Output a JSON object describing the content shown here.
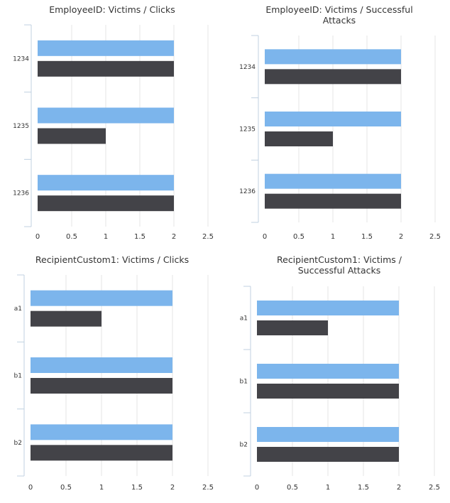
{
  "chart_data": [
    {
      "type": "bar",
      "orientation": "horizontal",
      "title": [
        "EmployeeID: Victims / Clicks"
      ],
      "categories": [
        "1234",
        "1235",
        "1236"
      ],
      "series": [
        {
          "values": [
            2,
            2,
            2
          ],
          "color": "#7cb5ec"
        },
        {
          "values": [
            2,
            1,
            2
          ],
          "color": "#434348"
        }
      ],
      "xlim": [
        0,
        2.5
      ],
      "xticks": [
        "0",
        "0.5",
        "1",
        "1.5",
        "2",
        "2.5"
      ],
      "grid": true
    },
    {
      "type": "bar",
      "orientation": "horizontal",
      "title": [
        "EmployeeID: Victims / Successful",
        "Attacks"
      ],
      "categories": [
        "1234",
        "1235",
        "1236"
      ],
      "series": [
        {
          "values": [
            2,
            2,
            2
          ],
          "color": "#7cb5ec"
        },
        {
          "values": [
            2,
            1,
            2
          ],
          "color": "#434348"
        }
      ],
      "xlim": [
        0,
        2.5
      ],
      "xticks": [
        "0",
        "0.5",
        "1",
        "1.5",
        "2",
        "2.5"
      ],
      "grid": true
    },
    {
      "type": "bar",
      "orientation": "horizontal",
      "title": [
        "RecipientCustom1: Victims / Clicks"
      ],
      "categories": [
        "a1",
        "b1",
        "b2"
      ],
      "series": [
        {
          "values": [
            2,
            2,
            2
          ],
          "color": "#7cb5ec"
        },
        {
          "values": [
            1,
            2,
            2
          ],
          "color": "#434348"
        }
      ],
      "xlim": [
        0,
        2.5
      ],
      "xticks": [
        "0",
        "0.5",
        "1",
        "1.5",
        "2",
        "2.5"
      ],
      "grid": true
    },
    {
      "type": "bar",
      "orientation": "horizontal",
      "title": [
        "RecipientCustom1: Victims /",
        "Successful Attacks"
      ],
      "categories": [
        "a1",
        "b1",
        "b2"
      ],
      "series": [
        {
          "values": [
            2,
            2,
            2
          ],
          "color": "#7cb5ec"
        },
        {
          "values": [
            1,
            2,
            2
          ],
          "color": "#434348"
        }
      ],
      "xlim": [
        0,
        2.5
      ],
      "xticks": [
        "0",
        "0.5",
        "1",
        "1.5",
        "2",
        "2.5"
      ],
      "grid": true
    }
  ]
}
